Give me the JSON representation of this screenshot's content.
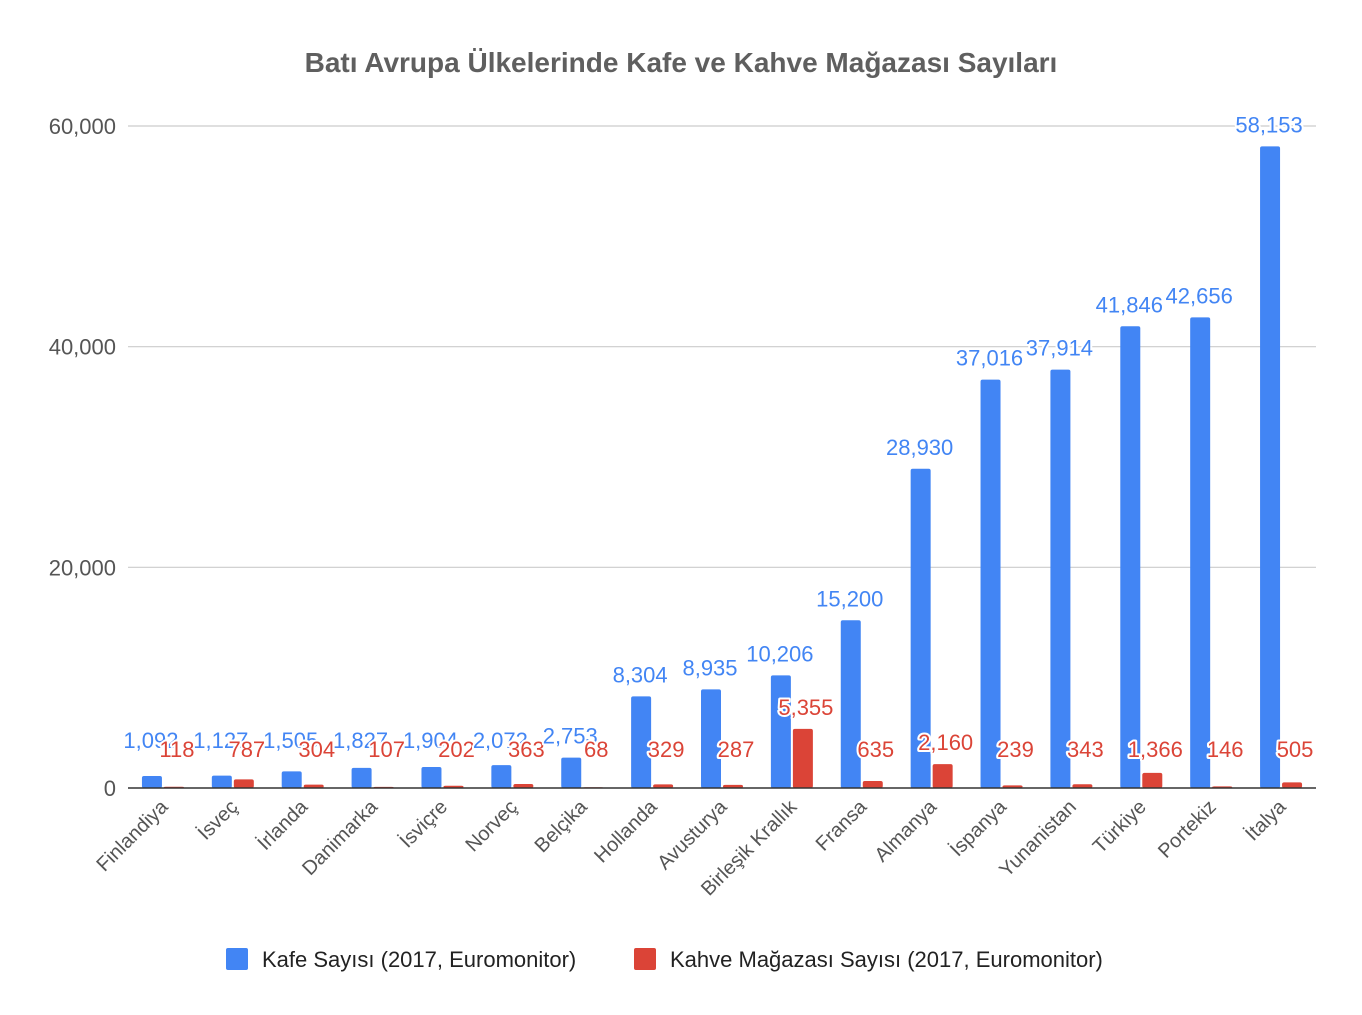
{
  "chart_data": {
    "type": "bar",
    "title": "Batı Avrupa Ülkelerinde Kafe ve Kahve Mağazası Sayıları",
    "xlabel": "",
    "ylabel": "",
    "ylim": [
      0,
      60000
    ],
    "yticks": [
      0,
      20000,
      40000,
      60000
    ],
    "ytick_labels": [
      "0",
      "20,000",
      "40,000",
      "60,000"
    ],
    "grid": true,
    "legend_position": "bottom",
    "categories": [
      "Finlandiya",
      "İsveç",
      "İrlanda",
      "Danimarka",
      "İsviçre",
      "Norveç",
      "Belçika",
      "Hollanda",
      "Avusturya",
      "Birleşik Krallık",
      "Fransa",
      "Almanya",
      "İspanya",
      "Yunanistan",
      "Türkiye",
      "Portekiz",
      "İtalya"
    ],
    "series": [
      {
        "name": "Kafe Sayısı (2017, Euromonitor)",
        "color": "#4285f4",
        "values": [
          1092,
          1127,
          1505,
          1827,
          1904,
          2072,
          2753,
          8304,
          8935,
          10206,
          15200,
          28930,
          37016,
          37914,
          41846,
          42656,
          58153
        ],
        "labels": [
          "1,092",
          "1,127",
          "1,505",
          "1,827",
          "1,904",
          "2,072",
          "2,753",
          "8,304",
          "8,935",
          "10,206",
          "15,200",
          "28,930",
          "37,016",
          "37,914",
          "41,846",
          "42,656",
          "58,153"
        ]
      },
      {
        "name": "Kahve Mağazası Sayısı (2017, Euromonitor)",
        "color": "#db4437",
        "values": [
          118,
          787,
          304,
          107,
          202,
          363,
          68,
          329,
          287,
          5355,
          635,
          2160,
          239,
          343,
          1366,
          146,
          505
        ],
        "labels": [
          "118",
          "787",
          "304",
          "107",
          "202",
          "363",
          "68",
          "329",
          "287",
          "5,355",
          "635",
          "2,160",
          "239",
          "343",
          "1,366",
          "146",
          "505"
        ]
      }
    ]
  }
}
